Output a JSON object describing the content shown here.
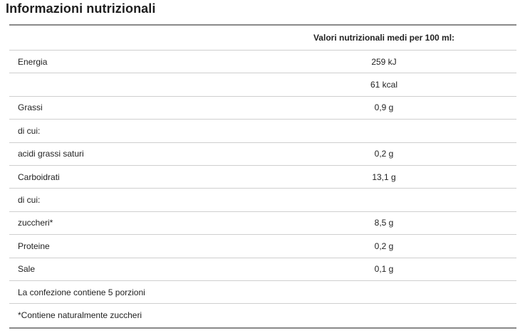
{
  "title": "Informazioni nutrizionali",
  "table": {
    "header": {
      "col1": "",
      "col2": "Valori nutrizionali medi per 100 ml:"
    },
    "rows": [
      {
        "label": "Energia",
        "value": "259 kJ"
      },
      {
        "label": "",
        "value": "61 kcal"
      },
      {
        "label": "Grassi",
        "value": "0,9 g"
      },
      {
        "label": "di cui:",
        "value": ""
      },
      {
        "label": "acidi grassi saturi",
        "value": "0,2 g"
      },
      {
        "label": "Carboidrati",
        "value": "13,1 g"
      },
      {
        "label": "di cui:",
        "value": ""
      },
      {
        "label": "zuccheri*",
        "value": "8,5 g"
      },
      {
        "label": "Proteine",
        "value": "0,2 g"
      },
      {
        "label": "Sale",
        "value": "0,1 g"
      },
      {
        "label": "La confezione contiene 5 porzioni",
        "value": ""
      },
      {
        "label": "*Contiene naturalmente zuccheri",
        "value": ""
      }
    ]
  }
}
